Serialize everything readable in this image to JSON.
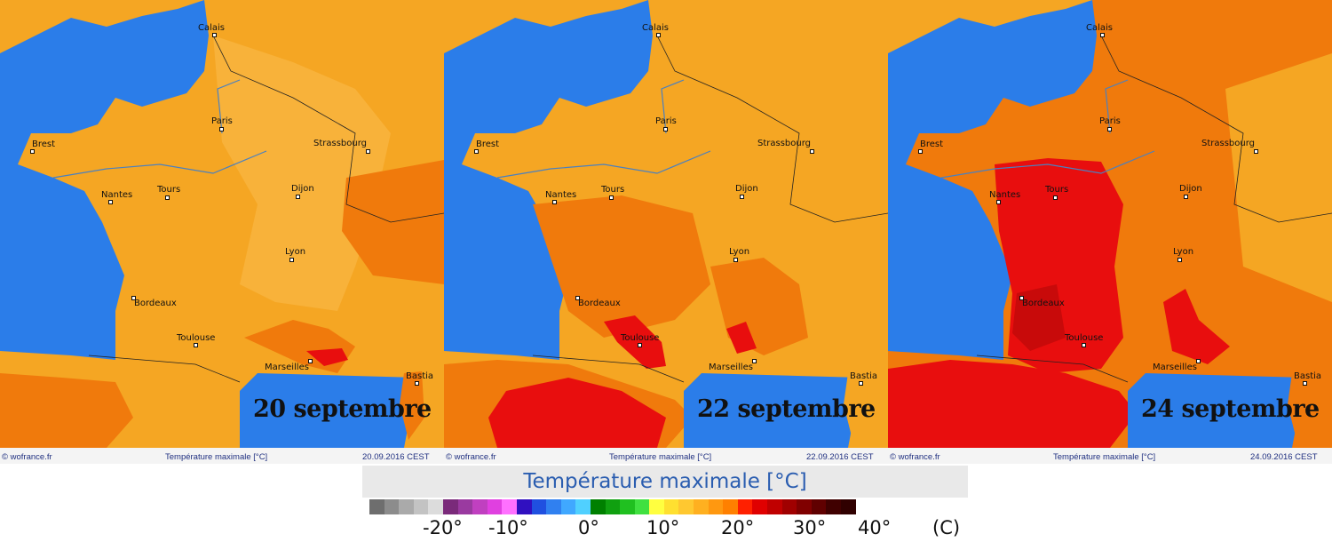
{
  "panels": [
    {
      "date_overlay": "20 septembre",
      "footer": {
        "credit": "© wofrance.fr",
        "title": "Température maximale [°C]",
        "timestamp": "20.09.2016  CEST"
      }
    },
    {
      "date_overlay": "22 septembre",
      "footer": {
        "credit": "© wofrance.fr",
        "title": "Température maximale [°C]",
        "timestamp": "22.09.2016  CEST"
      }
    },
    {
      "date_overlay": "24 septembre",
      "footer": {
        "credit": "© wofrance.fr",
        "title": "Température maximale [°C]",
        "timestamp": "24.09.2016  CEST"
      }
    }
  ],
  "cities": [
    "Calais",
    "Paris",
    "Strassbourg",
    "Brest",
    "Nantes",
    "Tours",
    "Dijon",
    "Lyon",
    "Bordeaux",
    "Toulouse",
    "Marseilles",
    "Bastia"
  ],
  "colors": {
    "sea": "#2b7de9",
    "warm": "#f5a623",
    "hot": "#f07a0c",
    "very_hot": "#e80e0e",
    "extreme": "#c80a0a"
  },
  "legend": {
    "title": "Température maximale [°C]",
    "ticks": [
      "-20°",
      "-10°",
      "0°",
      "10°",
      "20°",
      "30°",
      "40°"
    ],
    "unit": "(C)",
    "colors": [
      "#6e6e6e",
      "#8c8c8c",
      "#aaaaaa",
      "#c3c3c3",
      "#dcdcdc",
      "#7a2a7a",
      "#9a3aa0",
      "#c040c0",
      "#e040e0",
      "#ff70ff",
      "#3010c0",
      "#2050e0",
      "#3080f0",
      "#40a8ff",
      "#50d0ff",
      "#008000",
      "#10a010",
      "#20c020",
      "#40e040",
      "#ffff40",
      "#ffe030",
      "#ffc830",
      "#ffb020",
      "#ff9810",
      "#ff8000",
      "#ff2000",
      "#e00000",
      "#c00000",
      "#a00000",
      "#800000",
      "#600000",
      "#400000",
      "#300000"
    ]
  }
}
